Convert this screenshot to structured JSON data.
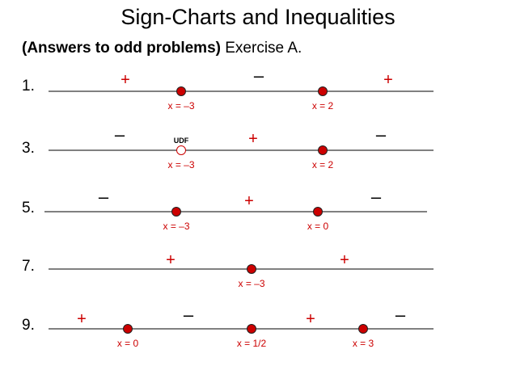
{
  "title": "Sign-Charts and Inequalities",
  "subtitle": {
    "bold": "(Answers to odd problems)",
    "normal": " Exercise A."
  },
  "colors": {
    "accent": "#cc0000",
    "line": "#000000"
  },
  "problems": [
    {
      "number": "1.",
      "signs": [
        "+",
        "–",
        "+"
      ],
      "points": [
        {
          "label": "x = –3",
          "type": "filled"
        },
        {
          "label": "x = 2",
          "type": "filled"
        }
      ]
    },
    {
      "number": "3.",
      "signs": [
        "–",
        "+",
        "–"
      ],
      "points": [
        {
          "label": "x = –3",
          "type": "open",
          "note": "UDF"
        },
        {
          "label": "x = 2",
          "type": "filled"
        }
      ]
    },
    {
      "number": "5.",
      "signs": [
        "–",
        "+",
        "–"
      ],
      "points": [
        {
          "label": "x = –3",
          "type": "filled"
        },
        {
          "label": "x = 0",
          "type": "filled"
        }
      ]
    },
    {
      "number": "7.",
      "signs": [
        "+",
        "+"
      ],
      "points": [
        {
          "label": "x = –3",
          "type": "filled"
        }
      ]
    },
    {
      "number": "9.",
      "signs": [
        "+",
        "–",
        "+",
        "–"
      ],
      "points": [
        {
          "label": "x = 0",
          "type": "filled"
        },
        {
          "label": "x = 1/2",
          "type": "filled"
        },
        {
          "label": "x = 3",
          "type": "filled"
        }
      ]
    }
  ]
}
